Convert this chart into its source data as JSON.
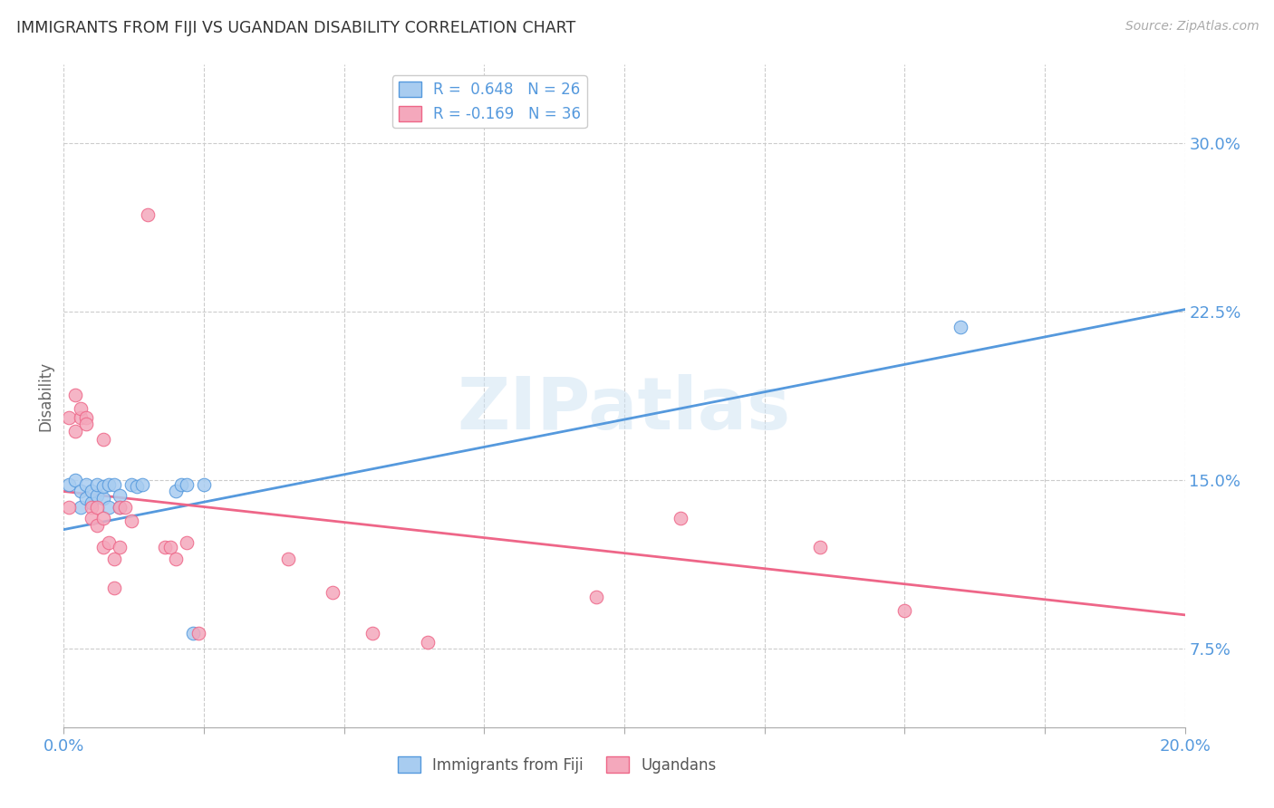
{
  "title": "IMMIGRANTS FROM FIJI VS UGANDAN DISABILITY CORRELATION CHART",
  "source": "Source: ZipAtlas.com",
  "ylabel": "Disability",
  "ytick_labels": [
    "7.5%",
    "15.0%",
    "22.5%",
    "30.0%"
  ],
  "ytick_values": [
    0.075,
    0.15,
    0.225,
    0.3
  ],
  "xlim": [
    0.0,
    0.2
  ],
  "ylim": [
    0.04,
    0.335
  ],
  "fiji_R": 0.648,
  "fiji_N": 26,
  "uganda_R": -0.169,
  "uganda_N": 36,
  "fiji_color": "#a8ccf0",
  "uganda_color": "#f4a8bc",
  "fiji_line_color": "#5599dd",
  "uganda_line_color": "#ee6688",
  "watermark": "ZIPatlas",
  "fiji_points_x": [
    0.001,
    0.002,
    0.003,
    0.003,
    0.004,
    0.004,
    0.005,
    0.005,
    0.006,
    0.006,
    0.007,
    0.007,
    0.008,
    0.008,
    0.009,
    0.01,
    0.01,
    0.012,
    0.013,
    0.014,
    0.02,
    0.021,
    0.022,
    0.023,
    0.025,
    0.16
  ],
  "fiji_points_y": [
    0.148,
    0.15,
    0.138,
    0.145,
    0.142,
    0.148,
    0.14,
    0.145,
    0.143,
    0.148,
    0.142,
    0.147,
    0.138,
    0.148,
    0.148,
    0.138,
    0.143,
    0.148,
    0.147,
    0.148,
    0.145,
    0.148,
    0.148,
    0.082,
    0.148,
    0.218
  ],
  "uganda_points_x": [
    0.001,
    0.001,
    0.002,
    0.002,
    0.003,
    0.003,
    0.004,
    0.004,
    0.005,
    0.005,
    0.006,
    0.006,
    0.007,
    0.007,
    0.007,
    0.008,
    0.009,
    0.009,
    0.01,
    0.01,
    0.011,
    0.012,
    0.015,
    0.018,
    0.019,
    0.02,
    0.022,
    0.024,
    0.04,
    0.048,
    0.055,
    0.065,
    0.095,
    0.11,
    0.135,
    0.15
  ],
  "uganda_points_y": [
    0.138,
    0.178,
    0.172,
    0.188,
    0.178,
    0.182,
    0.178,
    0.175,
    0.138,
    0.133,
    0.13,
    0.138,
    0.168,
    0.133,
    0.12,
    0.122,
    0.115,
    0.102,
    0.138,
    0.12,
    0.138,
    0.132,
    0.268,
    0.12,
    0.12,
    0.115,
    0.122,
    0.082,
    0.115,
    0.1,
    0.082,
    0.078,
    0.098,
    0.133,
    0.12,
    0.092
  ],
  "fiji_line_x0": 0.0,
  "fiji_line_y0": 0.128,
  "fiji_line_x1": 0.2,
  "fiji_line_y1": 0.226,
  "uganda_line_x0": 0.0,
  "uganda_line_y0": 0.145,
  "uganda_line_x1": 0.2,
  "uganda_line_y1": 0.09
}
